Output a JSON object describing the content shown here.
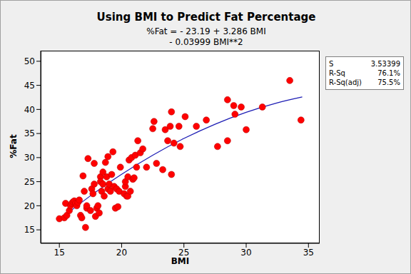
{
  "chart_data": {
    "type": "scatter",
    "title": "Using BMI to Predict Fat Percentage",
    "subtitle": [
      "%Fat = - 23.19 + 3.286 BMI",
      "- 0.03999 BMI**2"
    ],
    "x_label": "BMI",
    "y_label": "%Fat",
    "xlim": [
      13.5,
      35.9
    ],
    "ylim": [
      12.2,
      52.2
    ],
    "xticks": [
      15,
      20,
      25,
      30,
      35
    ],
    "yticks": [
      15,
      20,
      25,
      30,
      35,
      40,
      45,
      50
    ],
    "grid": false,
    "stats": [
      {
        "label": "S",
        "value": 3.53399,
        "value_label": "3.53399"
      },
      {
        "label": "R-Sq",
        "value": 76.1,
        "value_label": "76.1%"
      },
      {
        "label": "R-Sq(adj)",
        "value": 75.5,
        "value_label": "75.5%"
      }
    ],
    "series": [
      {
        "type": "scatter",
        "color": "#ff0000",
        "marker": "circle",
        "x": [
          15,
          15.4,
          15.5,
          15.6,
          15.8,
          15.9,
          16,
          16.1,
          16.2,
          16.3,
          16.4,
          16.5,
          16.6,
          16.7,
          16.8,
          16.9,
          17,
          17.1,
          17.2,
          17.2,
          17.3,
          17.5,
          17.6,
          17.7,
          17.8,
          17.8,
          17.9,
          18,
          18.1,
          18.2,
          18.3,
          18.3,
          18.4,
          18.5,
          18.5,
          18.6,
          18.7,
          18.8,
          18.9,
          18.9,
          19,
          19.1,
          19.2,
          19.3,
          19.4,
          19.5,
          19.6,
          19.7,
          19.8,
          19.9,
          20.2,
          20.3,
          20.3,
          20.4,
          20.5,
          20.5,
          20.6,
          20.7,
          20.8,
          20.9,
          21,
          21.1,
          21.2,
          21.3,
          21.5,
          21.7,
          22,
          22.5,
          22.6,
          22.8,
          23.3,
          23.5,
          23.7,
          23.9,
          24,
          24,
          24.2,
          24.6,
          24.7,
          25.1,
          26,
          26.8,
          27.7,
          28.5,
          28.5,
          29,
          29.1,
          29.6,
          30,
          31.3,
          33.5,
          34.4
        ],
        "values": [
          17.3,
          17.5,
          20.5,
          18,
          19,
          20,
          20.5,
          20.8,
          21,
          20.5,
          20,
          20.7,
          21.2,
          18,
          17.5,
          26.2,
          23,
          15.5,
          19.5,
          20,
          29.8,
          19,
          23.5,
          22.5,
          24.5,
          28.8,
          17.8,
          19.5,
          20,
          18.5,
          26,
          25,
          23,
          24.5,
          27,
          22,
          29,
          26,
          23.5,
          30.2,
          24.5,
          23,
          26.5,
          31.2,
          24,
          19.5,
          23.5,
          19.8,
          23,
          28,
          22.5,
          24,
          25,
          22,
          26,
          22,
          29.5,
          23,
          30,
          25.5,
          25.8,
          30.5,
          28,
          33.5,
          31,
          31.8,
          28,
          36,
          37.5,
          28.8,
          27.5,
          35.8,
          33.5,
          36.5,
          39.5,
          26.5,
          33,
          36.5,
          32.3,
          38.5,
          36.5,
          37.8,
          32.3,
          42,
          33.5,
          40.8,
          39,
          40.5,
          35.8,
          40.5,
          46,
          37.8
        ]
      },
      {
        "type": "line",
        "color": "#1c1cb4",
        "line_style": "solid",
        "x": [
          15,
          17.5,
          20,
          22.5,
          25,
          27.5,
          30,
          32.5,
          34.5
        ],
        "values": [
          17.1,
          22.07,
          26.53,
          30.5,
          33.97,
          36.93,
          39.4,
          41.37,
          42.58
        ]
      }
    ]
  }
}
